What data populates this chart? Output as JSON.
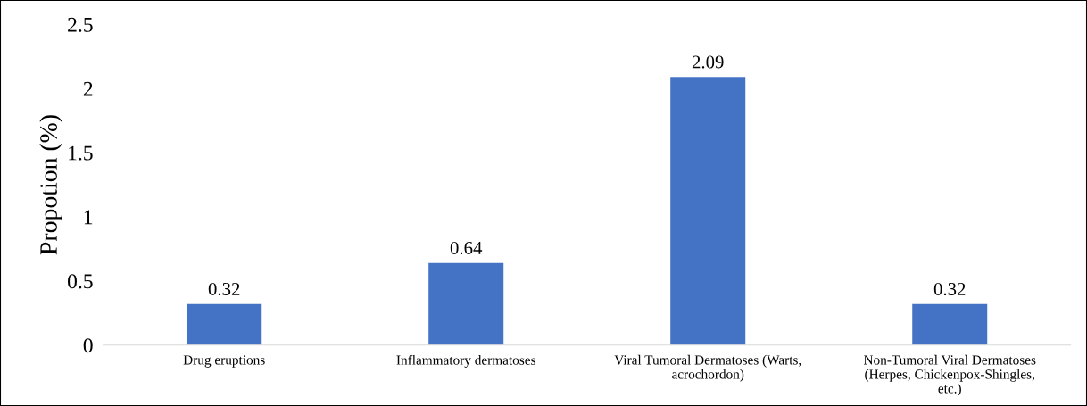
{
  "chart_data": {
    "type": "bar",
    "ylabel": "Propotion (%)",
    "categories": [
      "Drug eruptions",
      "Inflammatory dermatoses",
      "Viral Tumoral Dermatoses (Warts, acrochordon)",
      "Non-Tumoral Viral Dermatoses (Herpes, Chickenpox-Shingles, etc.)"
    ],
    "values": [
      0.32,
      0.64,
      2.09,
      0.32
    ],
    "color": "#4472c4",
    "ylim": [
      0,
      2.5
    ],
    "yticks": [
      0,
      0.5,
      1,
      1.5,
      2,
      2.5
    ],
    "grid": false,
    "data_labels": true
  }
}
